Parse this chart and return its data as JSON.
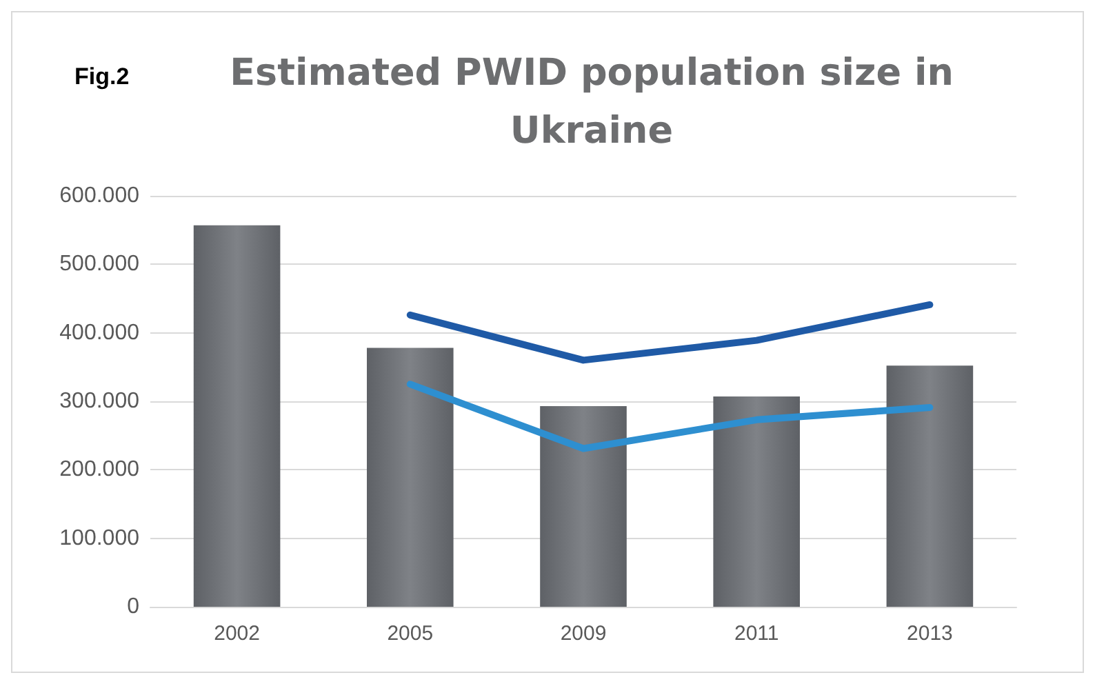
{
  "chart_data": {
    "type": "bar",
    "title": "Estimated PWID population size in\nUkraine",
    "annotations": [
      "Fig.2"
    ],
    "categories": [
      "2002",
      "2005",
      "2009",
      "2011",
      "2013"
    ],
    "series": [
      {
        "color": "#7f8287",
        "values": [
          557000,
          378000,
          293000,
          307000,
          352000
        ]
      },
      {
        "type": "line",
        "color": "#1f5aa6",
        "values": [
          null,
          426000,
          360000,
          389000,
          441000
        ]
      },
      {
        "type": "line",
        "color": "#2e8fd0",
        "values": [
          null,
          325000,
          231000,
          273000,
          291000
        ]
      }
    ],
    "ylim": [
      0,
      600000
    ],
    "yticks": [
      0,
      {
        "value": 100000,
        "label": "100.000"
      },
      {
        "value": 200000,
        "label": "200.000"
      },
      {
        "value": 300000,
        "label": "300.000"
      },
      {
        "value": 400000,
        "label": "400.000"
      },
      {
        "value": 500000,
        "label": "500.000"
      },
      {
        "value": 600000,
        "label": "600.000"
      }
    ],
    "grid": "y",
    "marker": "none",
    "line_style": "solid"
  }
}
